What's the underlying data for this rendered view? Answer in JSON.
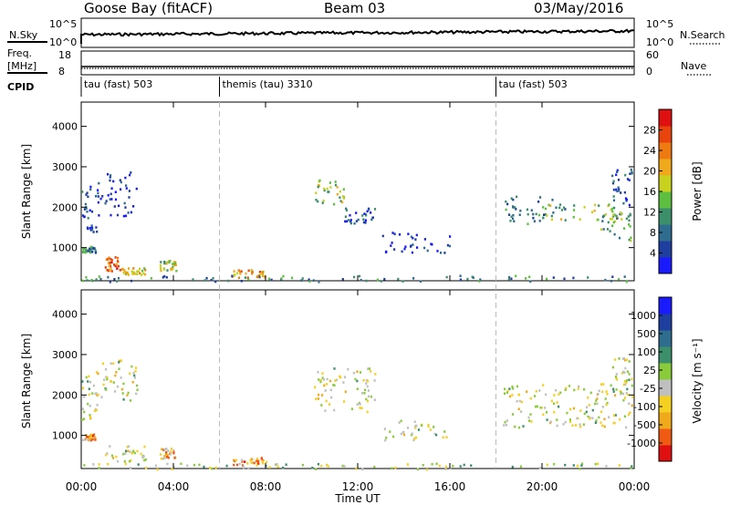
{
  "header": {
    "station": "Goose Bay (fitACF)",
    "beam": "Beam 03",
    "date": "03/May/2016"
  },
  "noise_panel": {
    "left_label": "N.Sky",
    "right_label": "N.Search",
    "left_ticks": [
      "10^5",
      "10^0"
    ],
    "right_ticks": [
      "10^5",
      "10^0"
    ]
  },
  "freq_panel": {
    "left_label_1": "Freq.",
    "left_label_2": "[MHz]",
    "right_label": "Nave",
    "left_ticks": [
      "18",
      "8"
    ],
    "right_ticks": [
      "60",
      "0"
    ]
  },
  "cpid": {
    "label": "CPID",
    "segments": [
      {
        "name": "tau (fast) 503",
        "start_hour": 0
      },
      {
        "name": "themis (tau) 3310",
        "start_hour": 6
      },
      {
        "name": "tau (fast) 503",
        "start_hour": 18
      }
    ]
  },
  "axes": {
    "ylabel": "Slant Range [km]",
    "xlabel": "Time UT",
    "y_ticks": [
      "1000",
      "2000",
      "3000",
      "4000"
    ],
    "x_ticks": [
      "00:00",
      "04:00",
      "08:00",
      "12:00",
      "16:00",
      "20:00",
      "00:00"
    ]
  },
  "chart_data": [
    {
      "type": "heatmap",
      "panel": "power",
      "xlabel": "Time UT",
      "ylabel": "Slant Range [km]",
      "xlim": [
        0,
        24
      ],
      "ylim": [
        180,
        4600
      ],
      "colorbar": {
        "label": "Power [dB]",
        "tick_labels": [
          "4",
          "8",
          "12",
          "16",
          "20",
          "24",
          "28"
        ],
        "colors": [
          "#1a1aff",
          "#1f3fa0",
          "#2f6d8e",
          "#3b8f6b",
          "#5cbf3f",
          "#c8d21e",
          "#f0a91a",
          "#f07a12",
          "#e8440c",
          "#e01010"
        ]
      },
      "regions": [
        {
          "t0": 0.0,
          "t1": 0.7,
          "r0": 1400,
          "r1": 2600,
          "level": 0.2
        },
        {
          "t0": 0.7,
          "t1": 2.4,
          "r0": 1800,
          "r1": 2900,
          "level": 0.1
        },
        {
          "t0": 0.0,
          "t1": 0.6,
          "r0": 900,
          "r1": 1050,
          "level": 0.3
        },
        {
          "t0": 1.0,
          "t1": 1.7,
          "r0": 400,
          "r1": 800,
          "level": 0.8
        },
        {
          "t0": 1.7,
          "t1": 2.8,
          "r0": 350,
          "r1": 520,
          "level": 0.6
        },
        {
          "t0": 3.4,
          "t1": 4.1,
          "r0": 450,
          "r1": 700,
          "level": 0.5
        },
        {
          "t0": 6.5,
          "t1": 8.0,
          "r0": 280,
          "r1": 480,
          "level": 0.7
        },
        {
          "t0": 10.0,
          "t1": 11.4,
          "r0": 2100,
          "r1": 2700,
          "level": 0.5
        },
        {
          "t0": 11.4,
          "t1": 12.8,
          "r0": 1600,
          "r1": 2000,
          "level": 0.2
        },
        {
          "t0": 13.0,
          "t1": 16.0,
          "r0": 900,
          "r1": 1400,
          "level": 0.1
        },
        {
          "t0": 18.3,
          "t1": 21.0,
          "r0": 1600,
          "r1": 2300,
          "level": 0.3
        },
        {
          "t0": 20.0,
          "t1": 23.9,
          "r0": 1700,
          "r1": 2100,
          "level": 0.5
        },
        {
          "t0": 22.5,
          "t1": 23.9,
          "r0": 1200,
          "r1": 1900,
          "level": 0.4
        },
        {
          "t0": 23.0,
          "t1": 23.9,
          "r0": 2000,
          "r1": 3000,
          "level": 0.2
        },
        {
          "t0": 0.0,
          "t1": 24.0,
          "r0": 180,
          "r1": 330,
          "level": 0.3
        }
      ]
    },
    {
      "type": "heatmap",
      "panel": "velocity",
      "xlabel": "Time UT",
      "ylabel": "Slant Range [km]",
      "xlim": [
        0,
        24
      ],
      "ylim": [
        180,
        4600
      ],
      "colorbar": {
        "label": "Velocity [m s⁻¹]",
        "tick_labels": [
          "-1000",
          "-500",
          "-100",
          "-25",
          "25",
          "100",
          "500",
          "1000"
        ],
        "colors": [
          "#e01010",
          "#f05a12",
          "#f0a91a",
          "#f5d020",
          "#c0c0c0",
          "#8acb3c",
          "#3b8f6b",
          "#2f6d8e",
          "#1f3fa0",
          "#1a1aff"
        ]
      },
      "regions": [
        {
          "t0": 0.0,
          "t1": 0.7,
          "r0": 1400,
          "r1": 2600,
          "level": 0.45
        },
        {
          "t0": 0.7,
          "t1": 2.4,
          "r0": 1800,
          "r1": 2900,
          "level": 0.45
        },
        {
          "t0": 0.0,
          "t1": 0.6,
          "r0": 900,
          "r1": 1050,
          "level": 0.25
        },
        {
          "t0": 1.0,
          "t1": 2.8,
          "r0": 350,
          "r1": 800,
          "level": 0.45
        },
        {
          "t0": 3.4,
          "t1": 4.1,
          "r0": 450,
          "r1": 700,
          "level": 0.3
        },
        {
          "t0": 6.5,
          "t1": 8.0,
          "r0": 280,
          "r1": 480,
          "level": 0.25
        },
        {
          "t0": 10.0,
          "t1": 12.8,
          "r0": 1600,
          "r1": 2700,
          "level": 0.45
        },
        {
          "t0": 13.0,
          "t1": 16.0,
          "r0": 900,
          "r1": 1400,
          "level": 0.45
        },
        {
          "t0": 18.3,
          "t1": 23.9,
          "r0": 1200,
          "r1": 2300,
          "level": 0.45
        },
        {
          "t0": 23.0,
          "t1": 23.9,
          "r0": 2000,
          "r1": 3000,
          "level": 0.45
        },
        {
          "t0": 0.0,
          "t1": 24.0,
          "r0": 180,
          "r1": 330,
          "level": 0.5
        }
      ]
    }
  ]
}
